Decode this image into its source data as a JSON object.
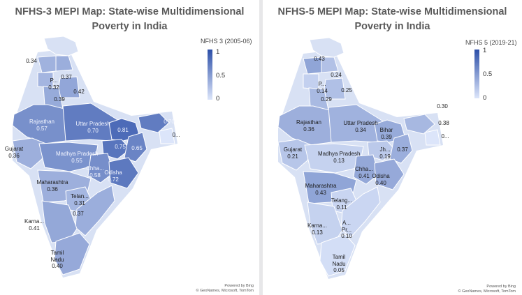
{
  "left_panel": {
    "title": "NFHS-3 MEPI Map: State-wise Multidimensional Poverty in India",
    "legend": {
      "title": "NFHS 3 (2005-06)",
      "max": "1",
      "mid": "0.5",
      "min": "0"
    },
    "attribution": {
      "line1": "Powered by Bing",
      "line2": "© GeoNames, Microsoft, TomTom"
    },
    "regions": {
      "himachal": {
        "name": "",
        "value": "0.34"
      },
      "punjab_area": {
        "name": "",
        "value": "0.37"
      },
      "haryana": {
        "name": "P...",
        "value": "0.32"
      },
      "uttarakhand": {
        "name": "",
        "value": "0.42"
      },
      "delhi_area": {
        "name": "",
        "value": "0.39"
      },
      "rajasthan": {
        "name": "Rajasthan",
        "value": "0.57"
      },
      "uttar_pradesh": {
        "name": "Uttar Pradesh",
        "value": "0.70"
      },
      "bihar": {
        "name": "",
        "value": "0.81"
      },
      "northeast": {
        "name": "",
        "value": "0.70"
      },
      "meghalaya": {
        "name": "",
        "value": "0..."
      },
      "jharkhand": {
        "name": "",
        "value": "0.75"
      },
      "west_bengal": {
        "name": "",
        "value": "0.65"
      },
      "gujarat": {
        "name": "Gujarat",
        "value": "0.36"
      },
      "madhya_pradesh": {
        "name": "Madhya Pradesh",
        "value": "0.55"
      },
      "chhattisgarh": {
        "name": "Chha...",
        "value": "0.58"
      },
      "odisha": {
        "name": "Odisha",
        "value": "0.72"
      },
      "maharashtra": {
        "name": "Maharashtra",
        "value": "0.36"
      },
      "telangana": {
        "name": "Telan...",
        "value": "0.31"
      },
      "andhra": {
        "name": "",
        "value": "0.37"
      },
      "karnataka": {
        "name": "Karna...",
        "value": "0.41"
      },
      "tamil_nadu": {
        "name": "Tamil\nNadu",
        "value": "0.40"
      }
    }
  },
  "right_panel": {
    "title": "NFHS-5 MEPI Map: State-wise Multidimensional Poverty in India",
    "legend": {
      "title": "NFHS 5 (2019-21)",
      "max": "1",
      "mid": "0.5",
      "min": "0"
    },
    "attribution": {
      "line1": "Powered by Bing",
      "line2": "© GeoNames, Microsoft, TomTom"
    },
    "regions": {
      "himachal": {
        "name": "",
        "value": "0.43"
      },
      "punjab_area": {
        "name": "",
        "value": "0.24"
      },
      "haryana": {
        "name": "P...",
        "value": "0.14"
      },
      "uttarakhand": {
        "name": "",
        "value": "0.25"
      },
      "delhi_area": {
        "name": "",
        "value": "0.29"
      },
      "rajasthan": {
        "name": "Rajasthan",
        "value": "0.36"
      },
      "uttar_pradesh": {
        "name": "Uttar Pradesh",
        "value": "0.34"
      },
      "bihar": {
        "name": "Bihar",
        "value": "0.39"
      },
      "northeast": {
        "name": "",
        "value": "0.30"
      },
      "assam": {
        "name": "",
        "value": "0.38"
      },
      "meghalaya": {
        "name": "",
        "value": "0..."
      },
      "jharkhand": {
        "name": "Jh...",
        "value": "0.19"
      },
      "west_bengal": {
        "name": "",
        "value": "0.37"
      },
      "gujarat": {
        "name": "Gujarat",
        "value": "0.21"
      },
      "madhya_pradesh": {
        "name": "Madhya Pradesh",
        "value": "0.13"
      },
      "chhattisgarh": {
        "name": "Chha...",
        "value": "0.41"
      },
      "odisha": {
        "name": "Odisha",
        "value": "0.40"
      },
      "maharashtra": {
        "name": "Maharashtra",
        "value": "0.43"
      },
      "telangana": {
        "name": "Telang...",
        "value": "0.11"
      },
      "andhra": {
        "name": "A...\nPr...",
        "value": "0.10"
      },
      "karnataka": {
        "name": "Karna...",
        "value": "0.13"
      },
      "tamil_nadu": {
        "name": "Tamil\nNadu",
        "value": "0.05"
      }
    }
  },
  "colors": {
    "scale_low": "#dce5fa",
    "scale_high": "#2c4fa8",
    "no_data": "#d8e1f4",
    "title_text": "#5a5a5a"
  }
}
